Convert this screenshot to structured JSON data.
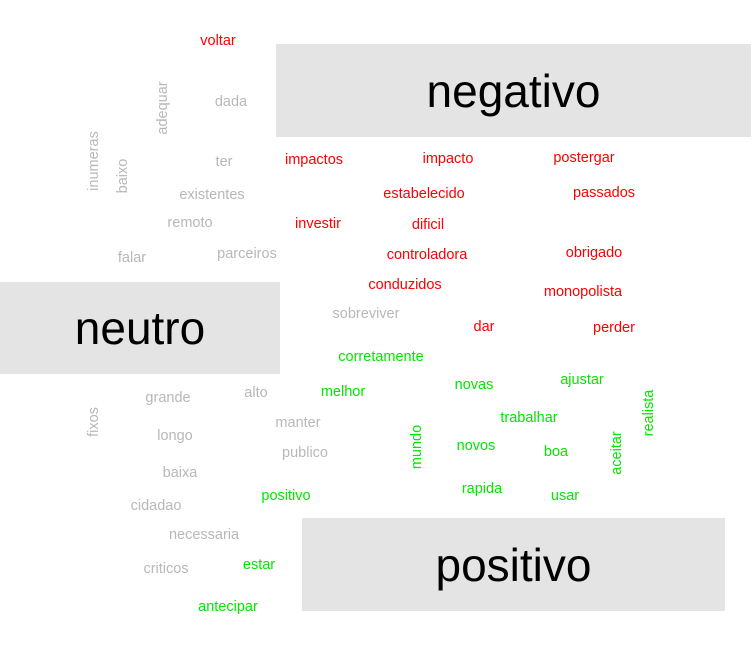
{
  "headers": {
    "negativo": "negativo",
    "neutro": "neutro",
    "positivo": "positivo"
  },
  "colors": {
    "negativo": "#ff0000",
    "neutro": "#b8b8b8",
    "positivo": "#00e800",
    "panel_background": "#e4e4e4"
  },
  "words": {
    "negativo": [
      "voltar",
      "impactos",
      "impacto",
      "postergar",
      "estabelecido",
      "passados",
      "investir",
      "dificil",
      "controladora",
      "obrigado",
      "conduzidos",
      "monopolista",
      "dar",
      "perder"
    ],
    "neutro": [
      "adequar",
      "dada",
      "inumeras",
      "baixo",
      "ter",
      "existentes",
      "remoto",
      "falar",
      "parceiros",
      "sobreviver",
      "grande",
      "alto",
      "fixos",
      "manter",
      "longo",
      "publico",
      "baixa",
      "cidadao",
      "necessaria",
      "criticos"
    ],
    "positivo": [
      "corretamente",
      "melhor",
      "novas",
      "ajustar",
      "realista",
      "trabalhar",
      "mundo",
      "novos",
      "aceitar",
      "boa",
      "rapida",
      "positivo",
      "usar",
      "estar",
      "antecipar"
    ]
  }
}
